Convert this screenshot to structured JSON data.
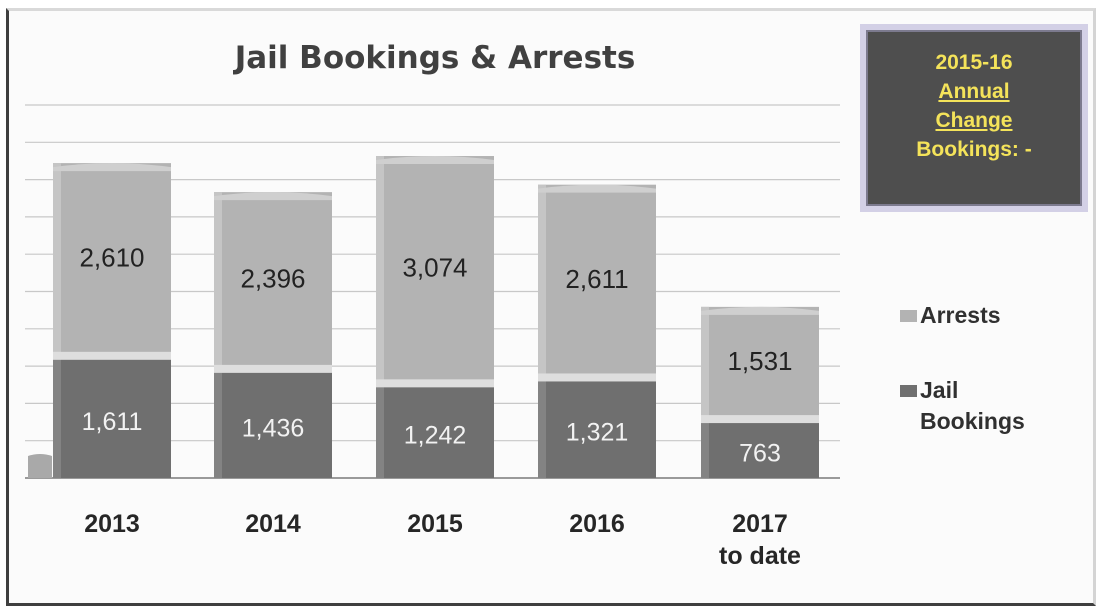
{
  "chart_data": {
    "type": "bar",
    "stacked": true,
    "title": "Jail Bookings & Arrests",
    "categories": [
      "2013",
      "2014",
      "2015",
      "2016",
      "2017 to date"
    ],
    "series": [
      {
        "name": "Jail Bookings",
        "values": [
          1611,
          1436,
          1242,
          1321,
          763
        ],
        "labels": [
          "1,611",
          "1,436",
          "1,242",
          "1,321",
          "763"
        ],
        "color": "#6f6f6f"
      },
      {
        "name": "Arrests",
        "values": [
          2610,
          2396,
          3074,
          2611,
          1531
        ],
        "labels": [
          "2,610",
          "2,396",
          "3,074",
          "2,611",
          "1,531"
        ],
        "color": "#b3b3b3"
      }
    ],
    "legend": [
      "Arrests",
      "Jail Bookings"
    ],
    "legend_position": "right",
    "ylim": [
      0,
      5000
    ],
    "grid": true
  },
  "callout": {
    "line1": "2015-16",
    "line2": "Annual",
    "line3": "Change",
    "line4": "Bookings: -"
  },
  "colors": {
    "bookings": "#6f6f6f",
    "arrests": "#b3b3b3",
    "callout_bg": "#4e4e4e",
    "callout_text": "#f4e35a"
  }
}
